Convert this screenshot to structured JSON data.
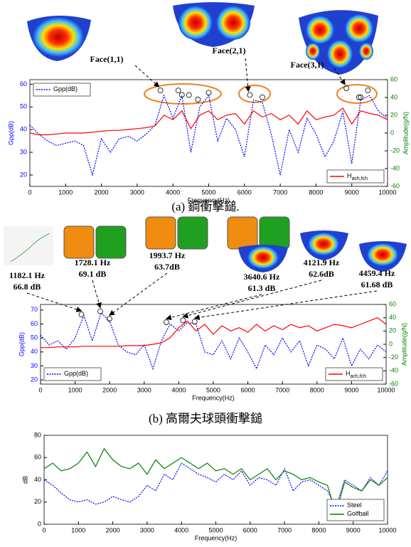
{
  "chart_data": [
    {
      "type": "line",
      "caption": "(a) 鋼衝擊鎚.",
      "xlabel": "Frequency(Hz)",
      "ylabel": "Gpp(dB)",
      "y2label": "Amplitude(g/N)",
      "ycolor": "#0000ff",
      "y2color": "#008000",
      "xlim": [
        0,
        10000
      ],
      "xticks": [
        0,
        1000,
        2000,
        3000,
        4000,
        5000,
        6000,
        7000,
        8000,
        9000,
        10000
      ],
      "ylim": [
        15,
        62
      ],
      "yticks": [
        20,
        30,
        40,
        50,
        60
      ],
      "y2lim": [
        -60,
        60
      ],
      "y2ticks": [
        -60,
        -40,
        -20,
        0,
        20,
        40,
        60
      ],
      "x": [
        0,
        250,
        500,
        750,
        1000,
        1250,
        1500,
        1750,
        2000,
        2250,
        2500,
        2750,
        3000,
        3250,
        3500,
        3750,
        4000,
        4250,
        4500,
        4750,
        5000,
        5250,
        5500,
        5750,
        6000,
        6250,
        6500,
        6750,
        7000,
        7250,
        7500,
        7750,
        8000,
        8250,
        8500,
        8750,
        9000,
        9250,
        9500,
        9750,
        10000
      ],
      "series": [
        {
          "name": "Gpp(dB)",
          "color": "#0000ff",
          "linestyle": "dotted",
          "legend": "upper left",
          "values": [
            42,
            38,
            35,
            33,
            34,
            35,
            33,
            20,
            36,
            30,
            36,
            37,
            35,
            38,
            42,
            55,
            45,
            55,
            30,
            50,
            55,
            35,
            45,
            40,
            28,
            53,
            52,
            38,
            20,
            40,
            30,
            45,
            38,
            28,
            35,
            48,
            25,
            53,
            55,
            48,
            45
          ]
        },
        {
          "name": "H",
          "name_sub": "ach,fch",
          "color": "#ff0000",
          "linestyle": "solid",
          "legend": "lower right",
          "axis": "y2",
          "values": [
            0,
            -2,
            -2,
            -1,
            0,
            0,
            0,
            1,
            2,
            3,
            3,
            4,
            5,
            6,
            8,
            20,
            15,
            25,
            5,
            20,
            25,
            15,
            20,
            22,
            10,
            25,
            18,
            22,
            15,
            20,
            10,
            25,
            15,
            18,
            20,
            28,
            10,
            25,
            22,
            20,
            15
          ]
        }
      ],
      "peaks": [
        {
          "x": 3650,
          "y": 56
        },
        {
          "x": 4150,
          "y": 56
        },
        {
          "x": 4250,
          "y": 54
        },
        {
          "x": 4450,
          "y": 54
        },
        {
          "x": 4700,
          "y": 52
        },
        {
          "x": 5000,
          "y": 55
        },
        {
          "x": 6150,
          "y": 54
        },
        {
          "x": 6500,
          "y": 53
        },
        {
          "x": 8850,
          "y": 57
        },
        {
          "x": 9200,
          "y": 53
        },
        {
          "x": 9250,
          "y": 53
        },
        {
          "x": 9450,
          "y": 56
        }
      ],
      "annotations": [
        "Face(1,1)",
        "Face(2,1)",
        "Face(3,1)"
      ]
    },
    {
      "type": "line",
      "caption": "(b) 高爾夫球頭衝擊鎚",
      "xlabel": "Frequency(Hz)",
      "ylabel": "Gpp(dB)",
      "y2label": "Amplitude(g/N)",
      "ycolor": "#0000ff",
      "y2color": "#008000",
      "xlim": [
        0,
        10000
      ],
      "xticks": [
        0,
        1000,
        2000,
        3000,
        4000,
        5000,
        6000,
        7000,
        8000,
        9000,
        10000
      ],
      "ylim": [
        17,
        74
      ],
      "yticks": [
        20,
        30,
        40,
        50,
        60,
        70
      ],
      "y2lim": [
        -60,
        60
      ],
      "y2ticks": [
        -60,
        -40,
        -20,
        0,
        20,
        40,
        60
      ],
      "x": [
        0,
        250,
        500,
        750,
        1000,
        1250,
        1500,
        1750,
        2000,
        2250,
        2500,
        2750,
        3000,
        3250,
        3500,
        3750,
        4000,
        4250,
        4500,
        4750,
        5000,
        5250,
        5500,
        5750,
        6000,
        6250,
        6500,
        6750,
        7000,
        7250,
        7500,
        7750,
        8000,
        8250,
        8500,
        8750,
        9000,
        9250,
        9500,
        9750,
        10000
      ],
      "series": [
        {
          "name": "Gpp(dB)",
          "color": "#0000ff",
          "linestyle": "dotted",
          "legend": "lower left",
          "values": [
            52,
            45,
            48,
            42,
            50,
            66,
            48,
            68,
            62,
            45,
            40,
            38,
            45,
            28,
            48,
            60,
            55,
            61,
            60,
            40,
            38,
            48,
            35,
            50,
            40,
            28,
            45,
            38,
            50,
            40,
            48,
            30,
            45,
            42,
            35,
            50,
            30,
            42,
            35,
            45,
            40
          ]
        },
        {
          "name": "H",
          "name_sub": "ach,fch",
          "color": "#ff0000",
          "linestyle": "solid",
          "legend": "lower right",
          "axis": "y2",
          "values": [
            -5,
            -5,
            -4,
            -4,
            -4,
            -3,
            -3,
            -3,
            -3,
            -3,
            -2,
            -2,
            -2,
            0,
            2,
            10,
            25,
            35,
            20,
            30,
            15,
            28,
            20,
            25,
            18,
            30,
            20,
            28,
            22,
            30,
            25,
            28,
            20,
            25,
            30,
            28,
            25,
            30,
            35,
            40,
            30
          ]
        }
      ],
      "annotations": [
        {
          "x": {
            "value": 1182.1,
            "label": "1182.1 Hz"
          },
          "y": {
            "value": 66.8,
            "label": "66.8 dB"
          }
        },
        {
          "x": {
            "value": 1728.1,
            "label": "1728.1 Hz"
          },
          "y": {
            "value": 69.1,
            "label": "69.1 dB"
          }
        },
        {
          "x": {
            "value": 1993.7,
            "label": "1993.7 Hz"
          },
          "y": {
            "value": 63.7,
            "label": "63.7dB"
          }
        },
        {
          "x": {
            "value": 3640.6,
            "label": "3640.6 Hz"
          },
          "y": {
            "value": 61.3,
            "label": "61.3 dB"
          }
        },
        {
          "x": {
            "value": 4121.9,
            "label": "4121.9 Hz"
          },
          "y": {
            "value": 62.6,
            "label": "62.6dB"
          }
        },
        {
          "x": {
            "value": 4459.4,
            "label": "4459.4 Hz"
          },
          "y": {
            "value": 61.68,
            "label": "61.68 dB"
          }
        }
      ]
    },
    {
      "type": "line",
      "xlabel": "Frequency(Hz)",
      "ylabel": "dB",
      "xlim": [
        0,
        10000
      ],
      "xticks": [
        0,
        1000,
        2000,
        3000,
        4000,
        5000,
        6000,
        7000,
        8000,
        9000,
        10000
      ],
      "ylim": [
        0,
        80
      ],
      "yticks": [
        0,
        20,
        40,
        60,
        80
      ],
      "x": [
        0,
        250,
        500,
        750,
        1000,
        1250,
        1500,
        1750,
        2000,
        2250,
        2500,
        2750,
        3000,
        3250,
        3500,
        3750,
        4000,
        4250,
        4500,
        4750,
        5000,
        5250,
        5500,
        5750,
        6000,
        6250,
        6500,
        6750,
        7000,
        7250,
        7500,
        7750,
        8000,
        8250,
        8500,
        8750,
        9000,
        9250,
        9500,
        9750,
        10000
      ],
      "series": [
        {
          "name": "Steel",
          "color": "#0000ff",
          "linestyle": "dotted",
          "legend": "lower right",
          "values": [
            40,
            35,
            28,
            22,
            20,
            22,
            18,
            20,
            25,
            22,
            20,
            25,
            35,
            30,
            45,
            40,
            55,
            50,
            45,
            42,
            38,
            45,
            40,
            48,
            35,
            42,
            40,
            35,
            50,
            30,
            38,
            40,
            35,
            30,
            15,
            40,
            35,
            30,
            42,
            35,
            48
          ]
        },
        {
          "name": "Golfball",
          "color": "#008000",
          "linestyle": "solid",
          "legend": "lower right",
          "values": [
            50,
            55,
            48,
            50,
            55,
            65,
            52,
            68,
            58,
            52,
            50,
            55,
            45,
            58,
            50,
            55,
            60,
            55,
            50,
            55,
            48,
            50,
            45,
            50,
            40,
            45,
            50,
            40,
            48,
            45,
            40,
            42,
            38,
            35,
            10,
            38,
            33,
            30,
            40,
            35,
            42
          ]
        }
      ]
    }
  ]
}
